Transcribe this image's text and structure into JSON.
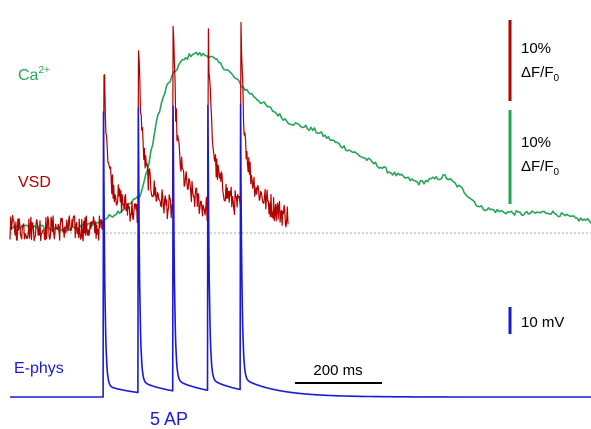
{
  "chart_data": {
    "type": "line",
    "x_unit": "ms",
    "series": [
      {
        "name": "Ca2+",
        "label_main": "Ca",
        "label_sup": "2+",
        "color": "#25a558",
        "unit": "% ΔF/F0",
        "points": [
          [
            0,
            0
          ],
          [
            60,
            0.2
          ],
          [
            120,
            -0.3
          ],
          [
            200,
            0.5
          ],
          [
            260,
            2.0
          ],
          [
            300,
            3.5
          ],
          [
            320,
            7
          ],
          [
            340,
            12
          ],
          [
            360,
            15
          ],
          [
            390,
            17.5
          ],
          [
            420,
            18.6
          ],
          [
            460,
            18.3
          ],
          [
            500,
            16.8
          ],
          [
            540,
            14.8
          ],
          [
            580,
            13.3
          ],
          [
            640,
            11.3
          ],
          [
            700,
            10.4
          ],
          [
            760,
            8.8
          ],
          [
            820,
            7.3
          ],
          [
            880,
            5.8
          ],
          [
            940,
            4.8
          ],
          [
            1000,
            5.5
          ],
          [
            1040,
            4.1
          ],
          [
            1080,
            2.2
          ],
          [
            1120,
            1.8
          ],
          [
            1180,
            1.5
          ],
          [
            1240,
            1.7
          ],
          [
            1300,
            1.0
          ],
          [
            1340,
            0.7
          ]
        ]
      },
      {
        "name": "VSD",
        "label_main": "VSD",
        "color": "#b30000",
        "unit": "% ΔF/F0",
        "spike_times": [
          215,
          295,
          375,
          455,
          530
        ],
        "spike_peaks": [
          16.1,
          16.1,
          16.3,
          17.1,
          17.6
        ],
        "segment": [
          0,
          640
        ]
      },
      {
        "name": "E-phys",
        "label_main": "E-phys",
        "color": "#1a1ad6",
        "unit": "mV",
        "spike_times": [
          215,
          295,
          375,
          455,
          530
        ],
        "spike_peaks": [
          101,
          101,
          101,
          101,
          101
        ],
        "baseline_mV": 0
      }
    ],
    "xlim": [
      0,
      1360
    ],
    "baseline_dotted": true
  },
  "annotations": {
    "stimulus_label": "5 AP",
    "time_scalebar": {
      "value_ms": 200,
      "label": "200 ms"
    },
    "vsd_scalebar": {
      "value_pct": 10,
      "line1": "10%",
      "line2_main": "ΔF/F",
      "line2_sub": "0",
      "color": "#b30000"
    },
    "ca_scalebar": {
      "value_pct": 10,
      "line1": "10%",
      "line2_main": "ΔF/F",
      "line2_sub": "0",
      "color": "#25a558"
    },
    "mv_scalebar": {
      "value_mV": 10,
      "label": "10 mV",
      "color": "#1a1ad6"
    }
  }
}
